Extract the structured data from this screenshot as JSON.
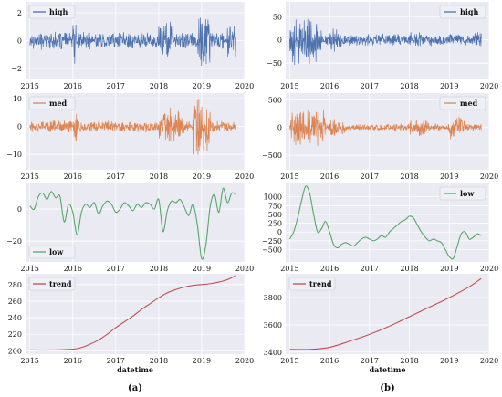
{
  "panel_labels": [
    "(a)",
    "(b)"
  ],
  "chart_data": [
    {
      "type": "line",
      "column": "a",
      "row": 0,
      "series": [
        {
          "name": "high",
          "color": "#4c72b0",
          "kind": "noise",
          "amplitude": 0.7,
          "bursts": [
            [
              2016.0,
              2016.1,
              1.8
            ],
            [
              2018.0,
              2018.3,
              1.6
            ],
            [
              2018.9,
              2019.2,
              2.6
            ],
            [
              2019.6,
              2019.8,
              1.5
            ]
          ]
        }
      ],
      "x": [
        2015,
        2019.8
      ],
      "xlim": [
        2014.9,
        2020
      ],
      "ylim": [
        -2.8,
        2.8
      ],
      "xticks": [
        2015,
        2016,
        2017,
        2018,
        2019,
        2020
      ],
      "yticks": [
        -2,
        0,
        2
      ],
      "xlabel": "",
      "legend": "top-left"
    },
    {
      "type": "line",
      "column": "a",
      "row": 1,
      "series": [
        {
          "name": "med",
          "color": "#dd8452",
          "kind": "noise",
          "amplitude": 2.5,
          "bursts": [
            [
              2016.0,
              2016.1,
              8
            ],
            [
              2018.0,
              2018.6,
              7
            ],
            [
              2018.8,
              2019.2,
              12
            ]
          ]
        }
      ],
      "x": [
        2015,
        2019.8
      ],
      "xlim": [
        2014.9,
        2020
      ],
      "ylim": [
        -15.5,
        12
      ],
      "xticks": [
        2015,
        2016,
        2017,
        2018,
        2019,
        2020
      ],
      "yticks": [
        -10,
        0,
        10
      ],
      "xlabel": "",
      "legend": "top-left"
    },
    {
      "type": "line",
      "column": "a",
      "row": 2,
      "series": [
        {
          "name": "low",
          "color": "#55a868",
          "kind": "smooth",
          "x": [
            2015.0,
            2015.1,
            2015.2,
            2015.3,
            2015.4,
            2015.5,
            2015.6,
            2015.7,
            2015.8,
            2015.9,
            2016.0,
            2016.1,
            2016.2,
            2016.3,
            2016.4,
            2016.5,
            2016.6,
            2016.7,
            2016.8,
            2016.9,
            2017.0,
            2017.1,
            2017.2,
            2017.3,
            2017.4,
            2017.5,
            2017.6,
            2017.7,
            2017.8,
            2017.9,
            2018.0,
            2018.1,
            2018.2,
            2018.3,
            2018.4,
            2018.5,
            2018.6,
            2018.7,
            2018.8,
            2018.9,
            2019.0,
            2019.1,
            2019.2,
            2019.3,
            2019.4,
            2019.5,
            2019.6,
            2019.7,
            2019.8
          ],
          "values": [
            2,
            0,
            8,
            10,
            6,
            11,
            7,
            8,
            -8,
            3,
            -2,
            -16,
            -2,
            3,
            1,
            4,
            -3,
            2,
            5,
            3,
            -2,
            0,
            4,
            2,
            -1,
            3,
            1,
            4,
            3,
            0,
            6,
            -14,
            -1,
            5,
            4,
            6,
            1,
            -4,
            3,
            -10,
            -31,
            -22,
            2,
            9,
            -2,
            13,
            4,
            10,
            9
          ]
        }
      ],
      "xlim": [
        2014.9,
        2020
      ],
      "ylim": [
        -33,
        16
      ],
      "xticks": [
        2015,
        2016,
        2017,
        2018,
        2019,
        2020
      ],
      "yticks": [
        -20,
        0
      ],
      "xlabel": "",
      "legend": "bottom-left"
    },
    {
      "type": "line",
      "column": "a",
      "row": 3,
      "series": [
        {
          "name": "trend",
          "color": "#c44e52",
          "kind": "smooth",
          "x": [
            2015.0,
            2015.5,
            2016.0,
            2016.2,
            2016.4,
            2016.6,
            2016.8,
            2017.0,
            2017.2,
            2017.4,
            2017.6,
            2017.8,
            2018.0,
            2018.2,
            2018.4,
            2018.6,
            2018.8,
            2019.0,
            2019.2,
            2019.4,
            2019.6,
            2019.8
          ],
          "values": [
            201,
            201,
            202,
            204,
            208,
            213,
            220,
            228,
            235,
            242,
            250,
            257,
            264,
            270,
            274,
            277,
            279,
            280,
            281,
            283,
            286,
            291
          ]
        }
      ],
      "xlim": [
        2014.9,
        2020
      ],
      "ylim": [
        196,
        293
      ],
      "xticks": [
        2015,
        2016,
        2017,
        2018,
        2019,
        2020
      ],
      "yticks": [
        200,
        220,
        240,
        260,
        280
      ],
      "xlabel": "datetime",
      "legend": "top-left"
    },
    {
      "type": "line",
      "column": "b",
      "row": 0,
      "series": [
        {
          "name": "high",
          "color": "#4c72b0",
          "kind": "noise",
          "amplitude": 14,
          "bursts": [
            [
              2015.0,
              2015.8,
              60
            ],
            [
              2016.0,
              2016.3,
              30
            ],
            [
              2018.0,
              2018.3,
              20
            ],
            [
              2019.6,
              2019.8,
              22
            ]
          ]
        }
      ],
      "x": [
        2015,
        2019.8
      ],
      "xlim": [
        2014.9,
        2020
      ],
      "ylim": [
        -85,
        82
      ],
      "xticks": [
        2015,
        2016,
        2017,
        2018,
        2019,
        2020
      ],
      "yticks": [
        -50,
        0,
        50
      ],
      "xlabel": "",
      "legend": "top-right"
    },
    {
      "type": "line",
      "column": "b",
      "row": 1,
      "series": [
        {
          "name": "med",
          "color": "#dd8452",
          "kind": "noise",
          "amplitude": 70,
          "bursts": [
            [
              2015.0,
              2015.9,
              380
            ],
            [
              2016.0,
              2016.4,
              200
            ],
            [
              2018.0,
              2018.5,
              180
            ],
            [
              2019.0,
              2019.4,
              220
            ]
          ]
        }
      ],
      "x": [
        2015,
        2019.8
      ],
      "xlim": [
        2014.9,
        2020
      ],
      "ylim": [
        -760,
        620
      ],
      "xticks": [
        2015,
        2016,
        2017,
        2018,
        2019,
        2020
      ],
      "yticks": [
        -500,
        0,
        500
      ],
      "xlabel": "",
      "legend": "top-right"
    },
    {
      "type": "line",
      "column": "b",
      "row": 2,
      "series": [
        {
          "name": "low",
          "color": "#55a868",
          "kind": "smooth",
          "x": [
            2015.0,
            2015.1,
            2015.2,
            2015.3,
            2015.4,
            2015.5,
            2015.6,
            2015.7,
            2015.8,
            2015.9,
            2016.0,
            2016.1,
            2016.2,
            2016.3,
            2016.4,
            2016.5,
            2016.6,
            2016.7,
            2016.8,
            2016.9,
            2017.0,
            2017.1,
            2017.2,
            2017.3,
            2017.4,
            2017.5,
            2017.6,
            2017.7,
            2017.8,
            2017.9,
            2018.0,
            2018.1,
            2018.2,
            2018.3,
            2018.4,
            2018.5,
            2018.6,
            2018.7,
            2018.8,
            2018.9,
            2019.0,
            2019.1,
            2019.2,
            2019.3,
            2019.4,
            2019.5,
            2019.6,
            2019.7,
            2019.8
          ],
          "values": [
            -200,
            0,
            400,
            900,
            1300,
            1100,
            500,
            0,
            100,
            300,
            0,
            -350,
            -450,
            -350,
            -300,
            -350,
            -400,
            -300,
            -200,
            -150,
            -200,
            -250,
            -200,
            -100,
            -150,
            0,
            100,
            200,
            300,
            350,
            450,
            400,
            200,
            0,
            -150,
            -250,
            -200,
            -250,
            -300,
            -500,
            -700,
            -750,
            -400,
            -50,
            0,
            -200,
            -150,
            -50,
            -100
          ]
        }
      ],
      "xlim": [
        2014.9,
        2020
      ],
      "ylim": [
        -850,
        1380
      ],
      "xticks": [
        2015,
        2016,
        2017,
        2018,
        2019,
        2020
      ],
      "yticks": [
        -500,
        -250,
        0,
        250,
        500,
        750,
        1000
      ],
      "xlabel": "",
      "legend": "top-right"
    },
    {
      "type": "line",
      "column": "b",
      "row": 3,
      "series": [
        {
          "name": "trend",
          "color": "#c44e52",
          "kind": "smooth",
          "x": [
            2015.0,
            2015.5,
            2016.0,
            2016.5,
            2017.0,
            2017.5,
            2018.0,
            2018.5,
            2019.0,
            2019.5,
            2019.8
          ],
          "values": [
            3420,
            3420,
            3435,
            3480,
            3530,
            3590,
            3660,
            3730,
            3800,
            3880,
            3940
          ]
        }
      ],
      "xlim": [
        2014.9,
        2020
      ],
      "ylim": [
        3385,
        3975
      ],
      "xticks": [
        2015,
        2016,
        2017,
        2018,
        2019,
        2020
      ],
      "yticks": [
        3400,
        3600,
        3800
      ],
      "xlabel": "datetime",
      "legend": "top-left"
    }
  ]
}
